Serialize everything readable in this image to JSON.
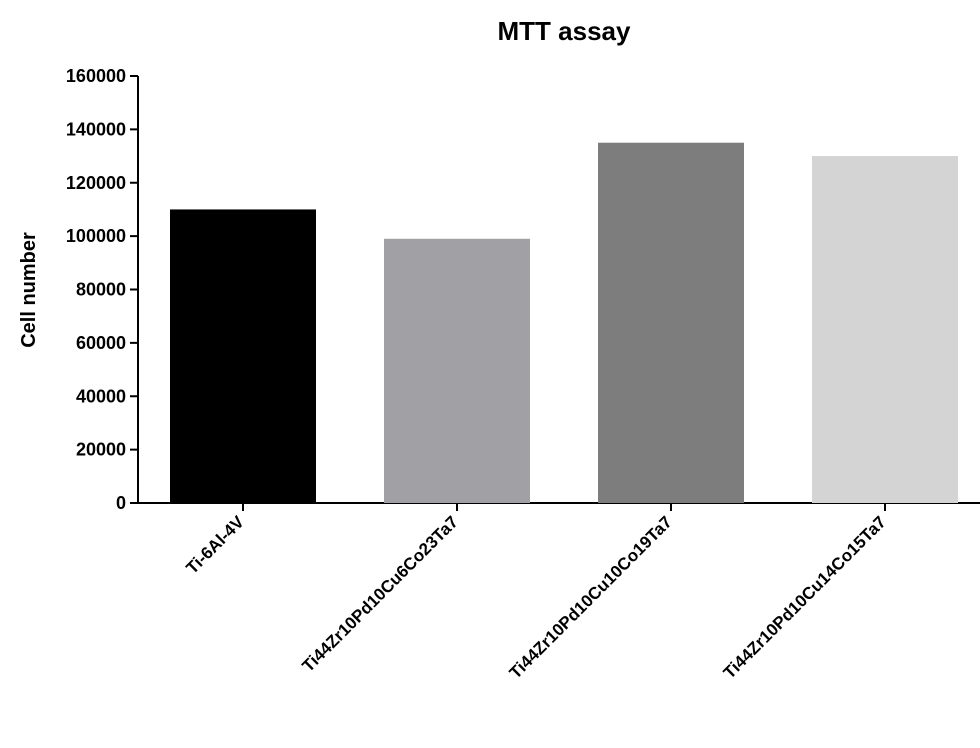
{
  "chart_data": {
    "type": "bar",
    "title": "MTT assay",
    "xlabel": "",
    "ylabel": "Cell number",
    "ylim": [
      0,
      160000
    ],
    "yticks": [
      "0",
      "20000",
      "40000",
      "60000",
      "80000",
      "100000",
      "120000",
      "140000",
      "160000"
    ],
    "categories": [
      "Ti-6Al-4V",
      "Ti44Zr10Pd10Cu6Co23Ta7",
      "Ti44Zr10Pd10Cu10Co19Ta7",
      "Ti44Zr10Pd10Cu14Co15Ta7"
    ],
    "values": [
      110000,
      99000,
      135000,
      130000
    ],
    "colors": [
      "#000000",
      "#a0a0a5",
      "#7d7d7d",
      "#d4d4d4"
    ],
    "grid": false,
    "legend": false
  }
}
